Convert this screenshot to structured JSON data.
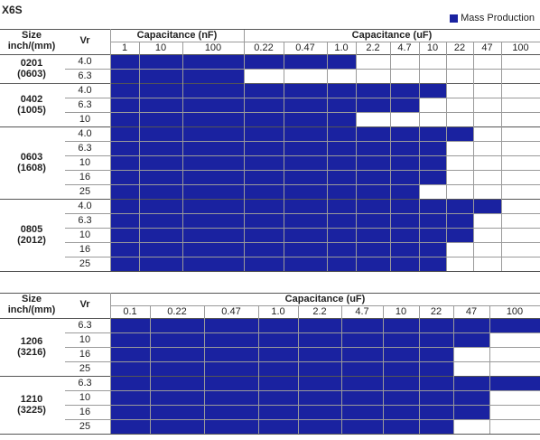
{
  "title": "X6S",
  "legend": {
    "label": "Mass Production",
    "color": "#1a22a0"
  },
  "headers": {
    "size": [
      "Size",
      "inch/(mm)"
    ],
    "vr": "Vr"
  },
  "table1": {
    "groups": [
      {
        "label": "Capacitance (nF)",
        "span": 3
      },
      {
        "label": "Capacitance (uF)",
        "span": 9
      }
    ],
    "columns": [
      "1",
      "10",
      "100",
      "0.22",
      "0.47",
      "1.0",
      "2.2",
      "4.7",
      "10",
      "22",
      "47",
      "100"
    ],
    "sizes": [
      {
        "inch": "0201",
        "mm": "(0603)",
        "rows": [
          {
            "vr": "4.0",
            "filled": 6
          },
          {
            "vr": "6.3",
            "filled": 3
          }
        ]
      },
      {
        "inch": "0402",
        "mm": "(1005)",
        "rows": [
          {
            "vr": "4.0",
            "filled": 9
          },
          {
            "vr": "6.3",
            "filled": 8
          },
          {
            "vr": "10",
            "filled": 6
          }
        ]
      },
      {
        "inch": "0603",
        "mm": "(1608)",
        "rows": [
          {
            "vr": "4.0",
            "filled": 10
          },
          {
            "vr": "6.3",
            "filled": 9
          },
          {
            "vr": "10",
            "filled": 9
          },
          {
            "vr": "16",
            "filled": 9
          },
          {
            "vr": "25",
            "filled": 8
          }
        ]
      },
      {
        "inch": "0805",
        "mm": "(2012)",
        "rows": [
          {
            "vr": "4.0",
            "filled": 11
          },
          {
            "vr": "6.3",
            "filled": 10
          },
          {
            "vr": "10",
            "filled": 10
          },
          {
            "vr": "16",
            "filled": 9
          },
          {
            "vr": "25",
            "filled": 9
          }
        ]
      }
    ]
  },
  "table2": {
    "groups": [
      {
        "label": "Capacitance (uF)",
        "span": 10
      }
    ],
    "columns": [
      "0.1",
      "0.22",
      "0.47",
      "1.0",
      "2.2",
      "4.7",
      "10",
      "22",
      "47",
      "100"
    ],
    "sizes": [
      {
        "inch": "1206",
        "mm": "(3216)",
        "rows": [
          {
            "vr": "6.3",
            "filled": 10
          },
          {
            "vr": "10",
            "filled": 9
          },
          {
            "vr": "16",
            "filled": 8
          },
          {
            "vr": "25",
            "filled": 8
          }
        ]
      },
      {
        "inch": "1210",
        "mm": "(3225)",
        "rows": [
          {
            "vr": "6.3",
            "filled": 10
          },
          {
            "vr": "10",
            "filled": 9
          },
          {
            "vr": "16",
            "filled": 9
          },
          {
            "vr": "25",
            "filled": 8
          }
        ]
      }
    ]
  }
}
